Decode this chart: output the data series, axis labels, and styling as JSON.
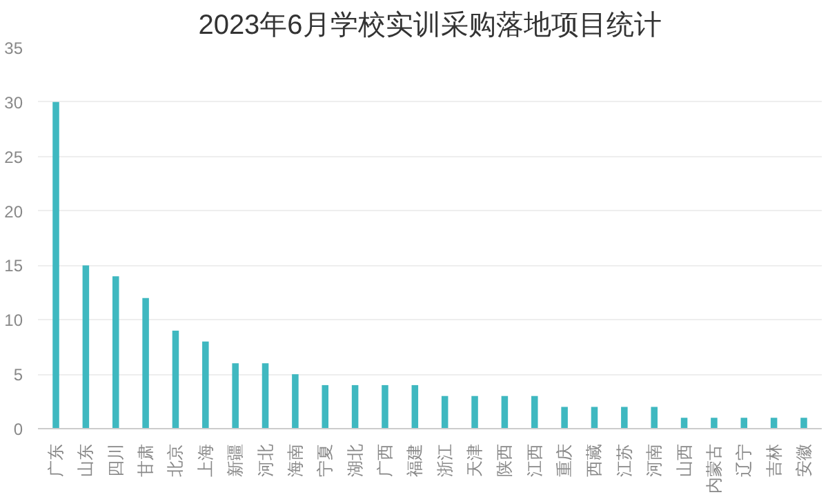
{
  "chart_data": {
    "type": "bar",
    "title": "2023年6月学校实训采购落地项目统计",
    "categories": [
      "广东",
      "山东",
      "四川",
      "甘肃",
      "北京",
      "上海",
      "新疆",
      "河北",
      "海南",
      "宁夏",
      "湖北",
      "广西",
      "福建",
      "浙江",
      "天津",
      "陕西",
      "江西",
      "重庆",
      "西藏",
      "江苏",
      "河南",
      "山西",
      "内蒙古",
      "辽宁",
      "吉林",
      "安徽"
    ],
    "values": [
      30,
      15,
      14,
      12,
      9,
      8,
      6,
      6,
      5,
      4,
      4,
      4,
      4,
      3,
      3,
      3,
      3,
      2,
      2,
      2,
      2,
      1,
      1,
      1,
      1,
      1
    ],
    "color": "#3fb8c0",
    "ylim": [
      0,
      35
    ],
    "yticks": [
      0,
      5,
      10,
      15,
      20,
      25,
      30,
      35
    ],
    "grid": "y"
  }
}
